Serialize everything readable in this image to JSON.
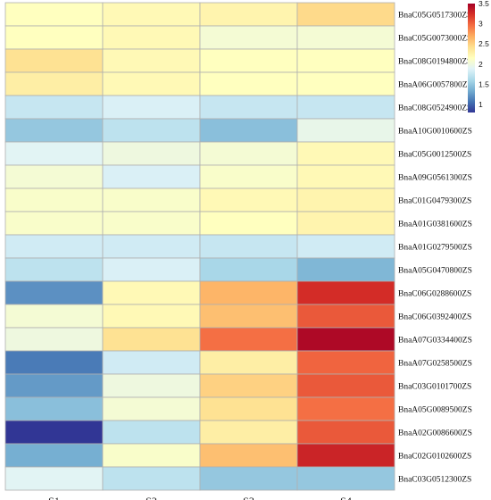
{
  "chart_data": {
    "type": "heatmap",
    "columns": [
      "S1",
      "S2",
      "S3",
      "S4"
    ],
    "rows": [
      "BnaC05G0517300ZS",
      "BnaC05G0073000ZS",
      "BnaC08G0194800ZS",
      "BnaA06G0057800ZS",
      "BnaC08G0524900ZS",
      "BnaA10G0010600ZS",
      "BnaC05G0012500ZS",
      "BnaA09G0561300ZS",
      "BnaC01G0479300ZS",
      "BnaA01G0381600ZS",
      "BnaA01G0279500ZS",
      "BnaA05G0470800ZS",
      "BnaC06G0288600ZS",
      "BnaC06G0392400ZS",
      "BnaA07G0334400ZS",
      "BnaA07G0258500ZS",
      "BnaC03G0101700ZS",
      "BnaA05G0089500ZS",
      "BnaA02G0086600ZS",
      "BnaC02G0102600ZS",
      "BnaC03G0512300ZS"
    ],
    "values": [
      [
        2.15,
        2.2,
        2.25,
        2.45
      ],
      [
        2.15,
        2.2,
        2.05,
        2.05
      ],
      [
        2.4,
        2.2,
        2.15,
        2.15
      ],
      [
        2.3,
        2.2,
        2.15,
        2.15
      ],
      [
        1.75,
        1.85,
        1.75,
        1.75
      ],
      [
        1.5,
        1.7,
        1.45,
        1.95
      ],
      [
        1.9,
        2.0,
        2.05,
        2.2
      ],
      [
        2.05,
        1.85,
        2.1,
        2.2
      ],
      [
        2.1,
        2.1,
        2.2,
        2.25
      ],
      [
        2.1,
        2.1,
        2.15,
        2.25
      ],
      [
        1.8,
        1.8,
        1.75,
        1.8
      ],
      [
        1.7,
        1.85,
        1.6,
        1.4
      ],
      [
        1.2,
        2.2,
        2.65,
        3.25
      ],
      [
        2.05,
        2.2,
        2.6,
        3.05
      ],
      [
        2.0,
        2.4,
        2.95,
        3.45
      ],
      [
        1.1,
        1.8,
        2.3,
        3.0
      ],
      [
        1.25,
        2.0,
        2.5,
        3.05
      ],
      [
        1.45,
        2.05,
        2.4,
        2.95
      ],
      [
        0.8,
        1.7,
        2.3,
        3.05
      ],
      [
        1.35,
        2.1,
        2.6,
        3.3
      ],
      [
        1.9,
        1.7,
        1.5,
        1.5
      ]
    ],
    "colorbar": {
      "min": 0.8,
      "max": 3.5,
      "ticks": [
        "1",
        "1.5",
        "2",
        "2.5",
        "3",
        "3.5"
      ],
      "colors": [
        "#313695",
        "#4575b4",
        "#74add1",
        "#abd9e9",
        "#e0f3f8",
        "#ffffbf",
        "#fee090",
        "#fdae61",
        "#f46d43",
        "#d73027",
        "#a50026"
      ]
    },
    "grid_color": "#b0b0b0"
  }
}
